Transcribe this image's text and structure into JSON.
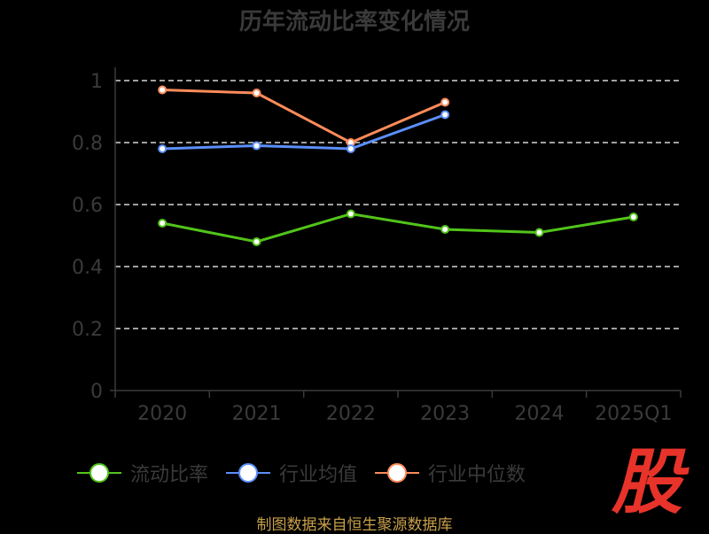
{
  "chart_data": {
    "type": "line",
    "title": "历年流动比率变化情况",
    "categories": [
      "2020",
      "2021",
      "2022",
      "2023",
      "2024",
      "2025Q1"
    ],
    "ylim": [
      0,
      1
    ],
    "yticks": [
      "0",
      "0.2",
      "0.4",
      "0.6",
      "0.8",
      "1"
    ],
    "grid": true,
    "legend_position": "bottom",
    "series": [
      {
        "name": "流动比率",
        "color": "#52c41a",
        "values": [
          0.54,
          0.48,
          0.57,
          0.52,
          0.51,
          0.56
        ]
      },
      {
        "name": "行业均值",
        "color": "#5b8ff9",
        "values": [
          0.78,
          0.79,
          0.78,
          0.89,
          null,
          null
        ]
      },
      {
        "name": "行业中位数",
        "color": "#ff8c5a",
        "values": [
          0.97,
          0.96,
          0.8,
          0.93,
          null,
          null
        ]
      }
    ]
  },
  "watermark": "股",
  "source": "制图数据来自恒生聚源数据库"
}
